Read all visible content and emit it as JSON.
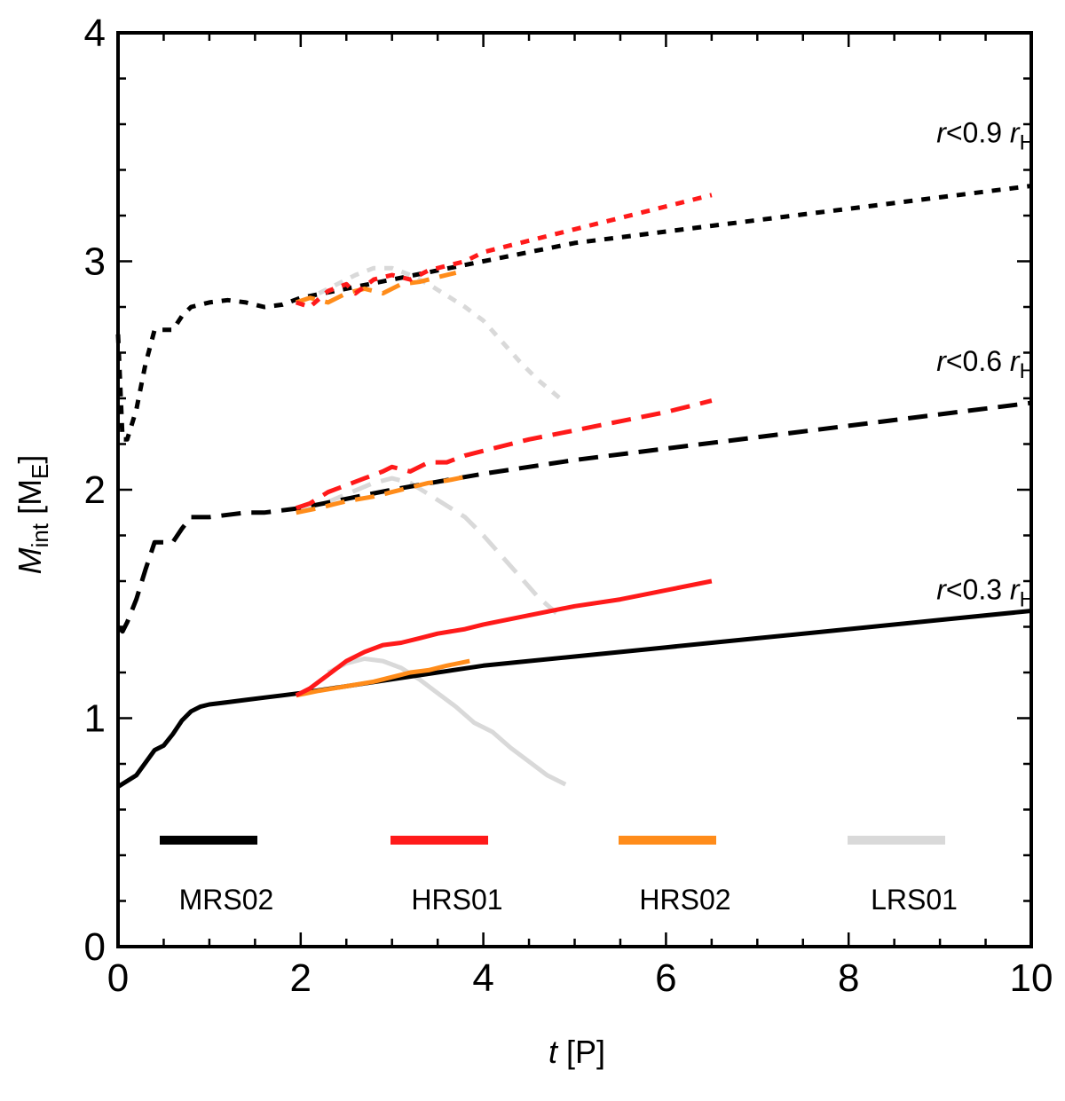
{
  "chart_data": {
    "type": "line",
    "xlabel": {
      "var": "t",
      "unit": "[P]"
    },
    "ylabel": {
      "var": "M",
      "sub": "int",
      "unit_open": "[M",
      "unit_sub": "E",
      "unit_close": "]"
    },
    "xlim": [
      0,
      10
    ],
    "ylim": [
      0,
      4
    ],
    "x_ticks": [
      0,
      2,
      4,
      6,
      8,
      10
    ],
    "x_tick_labels": [
      "0",
      "2",
      "4",
      "6",
      "8",
      "10"
    ],
    "y_ticks": [
      0,
      1,
      2,
      3,
      4
    ],
    "y_tick_labels": [
      "0",
      "1",
      "2",
      "3",
      "4"
    ],
    "grid": false,
    "legend": [
      {
        "name": "MRS02",
        "color": "#000000"
      },
      {
        "name": "HRS01",
        "color": "#ff1a1a"
      },
      {
        "name": "HRS02",
        "color": "#ff8c1a"
      },
      {
        "name": "LRS01",
        "color": "#d9d9d9"
      }
    ],
    "legend_position": "bottom",
    "annotations": [
      {
        "var": "r",
        "text": "<0.9 ",
        "rvar": "r",
        "rsub": "H",
        "x": 9.5,
        "y": 3.52
      },
      {
        "var": "r",
        "text": "<0.6 ",
        "rvar": "r",
        "rsub": "H",
        "x": 9.5,
        "y": 2.52
      },
      {
        "var": "r",
        "text": "<0.3 ",
        "rvar": "r",
        "rsub": "H",
        "x": 9.5,
        "y": 1.52
      }
    ],
    "series": [
      {
        "name": "MRS02",
        "region": "r<0.3 rH",
        "style": "solid",
        "color": "#000000",
        "x": [
          0.0,
          0.2,
          0.4,
          0.5,
          0.6,
          0.7,
          0.8,
          0.9,
          1.0,
          1.2,
          1.4,
          1.6,
          1.8,
          2.0,
          3.0,
          4.0,
          5.0,
          6.0,
          7.0,
          8.0,
          9.0,
          10.0
        ],
        "y": [
          0.7,
          0.75,
          0.86,
          0.88,
          0.93,
          0.99,
          1.03,
          1.05,
          1.06,
          1.07,
          1.08,
          1.09,
          1.1,
          1.11,
          1.17,
          1.23,
          1.27,
          1.31,
          1.35,
          1.39,
          1.43,
          1.47
        ]
      },
      {
        "name": "MRS02",
        "region": "r<0.6 rH",
        "style": "dashed",
        "color": "#000000",
        "x": [
          0.0,
          0.05,
          0.1,
          0.2,
          0.3,
          0.4,
          0.5,
          0.6,
          0.7,
          0.8,
          0.9,
          1.0,
          1.2,
          1.4,
          1.6,
          1.8,
          2.0,
          3.0,
          4.0,
          5.0,
          6.0,
          7.0,
          8.0,
          9.0,
          10.0
        ],
        "y": [
          1.4,
          1.38,
          1.42,
          1.52,
          1.65,
          1.77,
          1.77,
          1.77,
          1.83,
          1.88,
          1.88,
          1.88,
          1.89,
          1.9,
          1.9,
          1.91,
          1.92,
          2.0,
          2.07,
          2.13,
          2.18,
          2.23,
          2.28,
          2.33,
          2.38
        ]
      },
      {
        "name": "MRS02",
        "region": "r<0.9 rH",
        "style": "dotted",
        "color": "#000000",
        "x": [
          0.0,
          0.05,
          0.1,
          0.2,
          0.3,
          0.4,
          0.5,
          0.6,
          0.7,
          0.8,
          1.0,
          1.2,
          1.4,
          1.6,
          1.8,
          2.0,
          3.0,
          4.0,
          5.0,
          6.0,
          7.0,
          8.0,
          9.0,
          10.0
        ],
        "y": [
          2.68,
          2.22,
          2.22,
          2.35,
          2.55,
          2.7,
          2.7,
          2.7,
          2.76,
          2.8,
          2.82,
          2.83,
          2.82,
          2.8,
          2.81,
          2.84,
          2.92,
          3.0,
          3.08,
          3.13,
          3.18,
          3.23,
          3.28,
          3.33
        ]
      },
      {
        "name": "HRS01",
        "region": "r<0.3 rH",
        "style": "solid",
        "color": "#ff1a1a",
        "x": [
          1.95,
          2.1,
          2.3,
          2.5,
          2.7,
          2.9,
          3.1,
          3.3,
          3.5,
          3.8,
          4.0,
          4.5,
          5.0,
          5.5,
          6.0,
          6.5
        ],
        "y": [
          1.1,
          1.13,
          1.19,
          1.25,
          1.29,
          1.32,
          1.33,
          1.35,
          1.37,
          1.39,
          1.41,
          1.45,
          1.49,
          1.52,
          1.56,
          1.6
        ]
      },
      {
        "name": "HRS01",
        "region": "r<0.6 rH",
        "style": "dashed",
        "color": "#ff1a1a",
        "x": [
          1.95,
          2.1,
          2.3,
          2.5,
          2.7,
          2.9,
          3.0,
          3.2,
          3.4,
          3.6,
          3.8,
          4.0,
          4.5,
          5.0,
          5.5,
          6.0,
          6.5
        ],
        "y": [
          1.92,
          1.94,
          1.99,
          2.02,
          2.05,
          2.08,
          2.1,
          2.08,
          2.12,
          2.12,
          2.15,
          2.17,
          2.22,
          2.26,
          2.3,
          2.34,
          2.39
        ]
      },
      {
        "name": "HRS01",
        "region": "r<0.9 rH",
        "style": "dotted",
        "color": "#ff1a1a",
        "x": [
          1.95,
          2.1,
          2.3,
          2.5,
          2.6,
          2.8,
          3.0,
          3.2,
          3.4,
          3.6,
          3.8,
          4.0,
          4.5,
          5.0,
          5.5,
          6.0,
          6.5
        ],
        "y": [
          2.82,
          2.8,
          2.87,
          2.9,
          2.86,
          2.92,
          2.94,
          2.92,
          2.96,
          2.98,
          3.0,
          3.04,
          3.09,
          3.14,
          3.19,
          3.24,
          3.29
        ]
      },
      {
        "name": "HRS02",
        "region": "r<0.3 rH",
        "style": "solid",
        "color": "#ff8c1a",
        "x": [
          1.95,
          2.2,
          2.5,
          2.8,
          3.0,
          3.2,
          3.4,
          3.6,
          3.85
        ],
        "y": [
          1.1,
          1.12,
          1.14,
          1.16,
          1.18,
          1.2,
          1.21,
          1.23,
          1.25
        ]
      },
      {
        "name": "HRS02",
        "region": "r<0.6 rH",
        "style": "dashed",
        "color": "#ff8c1a",
        "x": [
          1.95,
          2.2,
          2.5,
          2.8,
          3.0,
          3.2,
          3.4,
          3.6,
          3.85
        ],
        "y": [
          1.9,
          1.92,
          1.95,
          1.97,
          1.99,
          2.01,
          2.03,
          2.04,
          2.06
        ]
      },
      {
        "name": "HRS02",
        "region": "r<0.9 rH",
        "style": "dashed",
        "color": "#ff8c1a",
        "x": [
          1.95,
          2.1,
          2.3,
          2.5,
          2.7,
          2.9,
          3.1,
          3.3,
          3.5,
          3.7
        ],
        "y": [
          2.82,
          2.84,
          2.82,
          2.86,
          2.88,
          2.86,
          2.9,
          2.91,
          2.93,
          2.95
        ]
      },
      {
        "name": "LRS01",
        "region": "r<0.3 rH",
        "style": "solid",
        "color": "#d9d9d9",
        "x": [
          2.3,
          2.5,
          2.7,
          2.9,
          3.1,
          3.3,
          3.5,
          3.7,
          3.9,
          4.1,
          4.3,
          4.5,
          4.7,
          4.9
        ],
        "y": [
          1.2,
          1.24,
          1.26,
          1.25,
          1.22,
          1.17,
          1.11,
          1.05,
          0.98,
          0.94,
          0.87,
          0.81,
          0.75,
          0.71
        ]
      },
      {
        "name": "LRS01",
        "region": "r<0.6 rH",
        "style": "dashed",
        "color": "#d9d9d9",
        "x": [
          1.95,
          2.2,
          2.5,
          2.8,
          3.0,
          3.2,
          3.4,
          3.6,
          3.8,
          4.0,
          4.2,
          4.4,
          4.6,
          4.8
        ],
        "y": [
          1.9,
          1.93,
          1.98,
          2.03,
          2.05,
          2.03,
          1.98,
          1.93,
          1.88,
          1.8,
          1.71,
          1.62,
          1.53,
          1.46
        ]
      },
      {
        "name": "LRS01",
        "region": "r<0.9 rH",
        "style": "dotted",
        "color": "#d9d9d9",
        "x": [
          2.2,
          2.4,
          2.6,
          2.8,
          3.0,
          3.2,
          3.4,
          3.6,
          3.8,
          4.0,
          4.2,
          4.4,
          4.6,
          4.9
        ],
        "y": [
          2.86,
          2.9,
          2.94,
          2.97,
          2.97,
          2.94,
          2.9,
          2.85,
          2.8,
          2.74,
          2.65,
          2.56,
          2.48,
          2.38
        ]
      }
    ]
  }
}
